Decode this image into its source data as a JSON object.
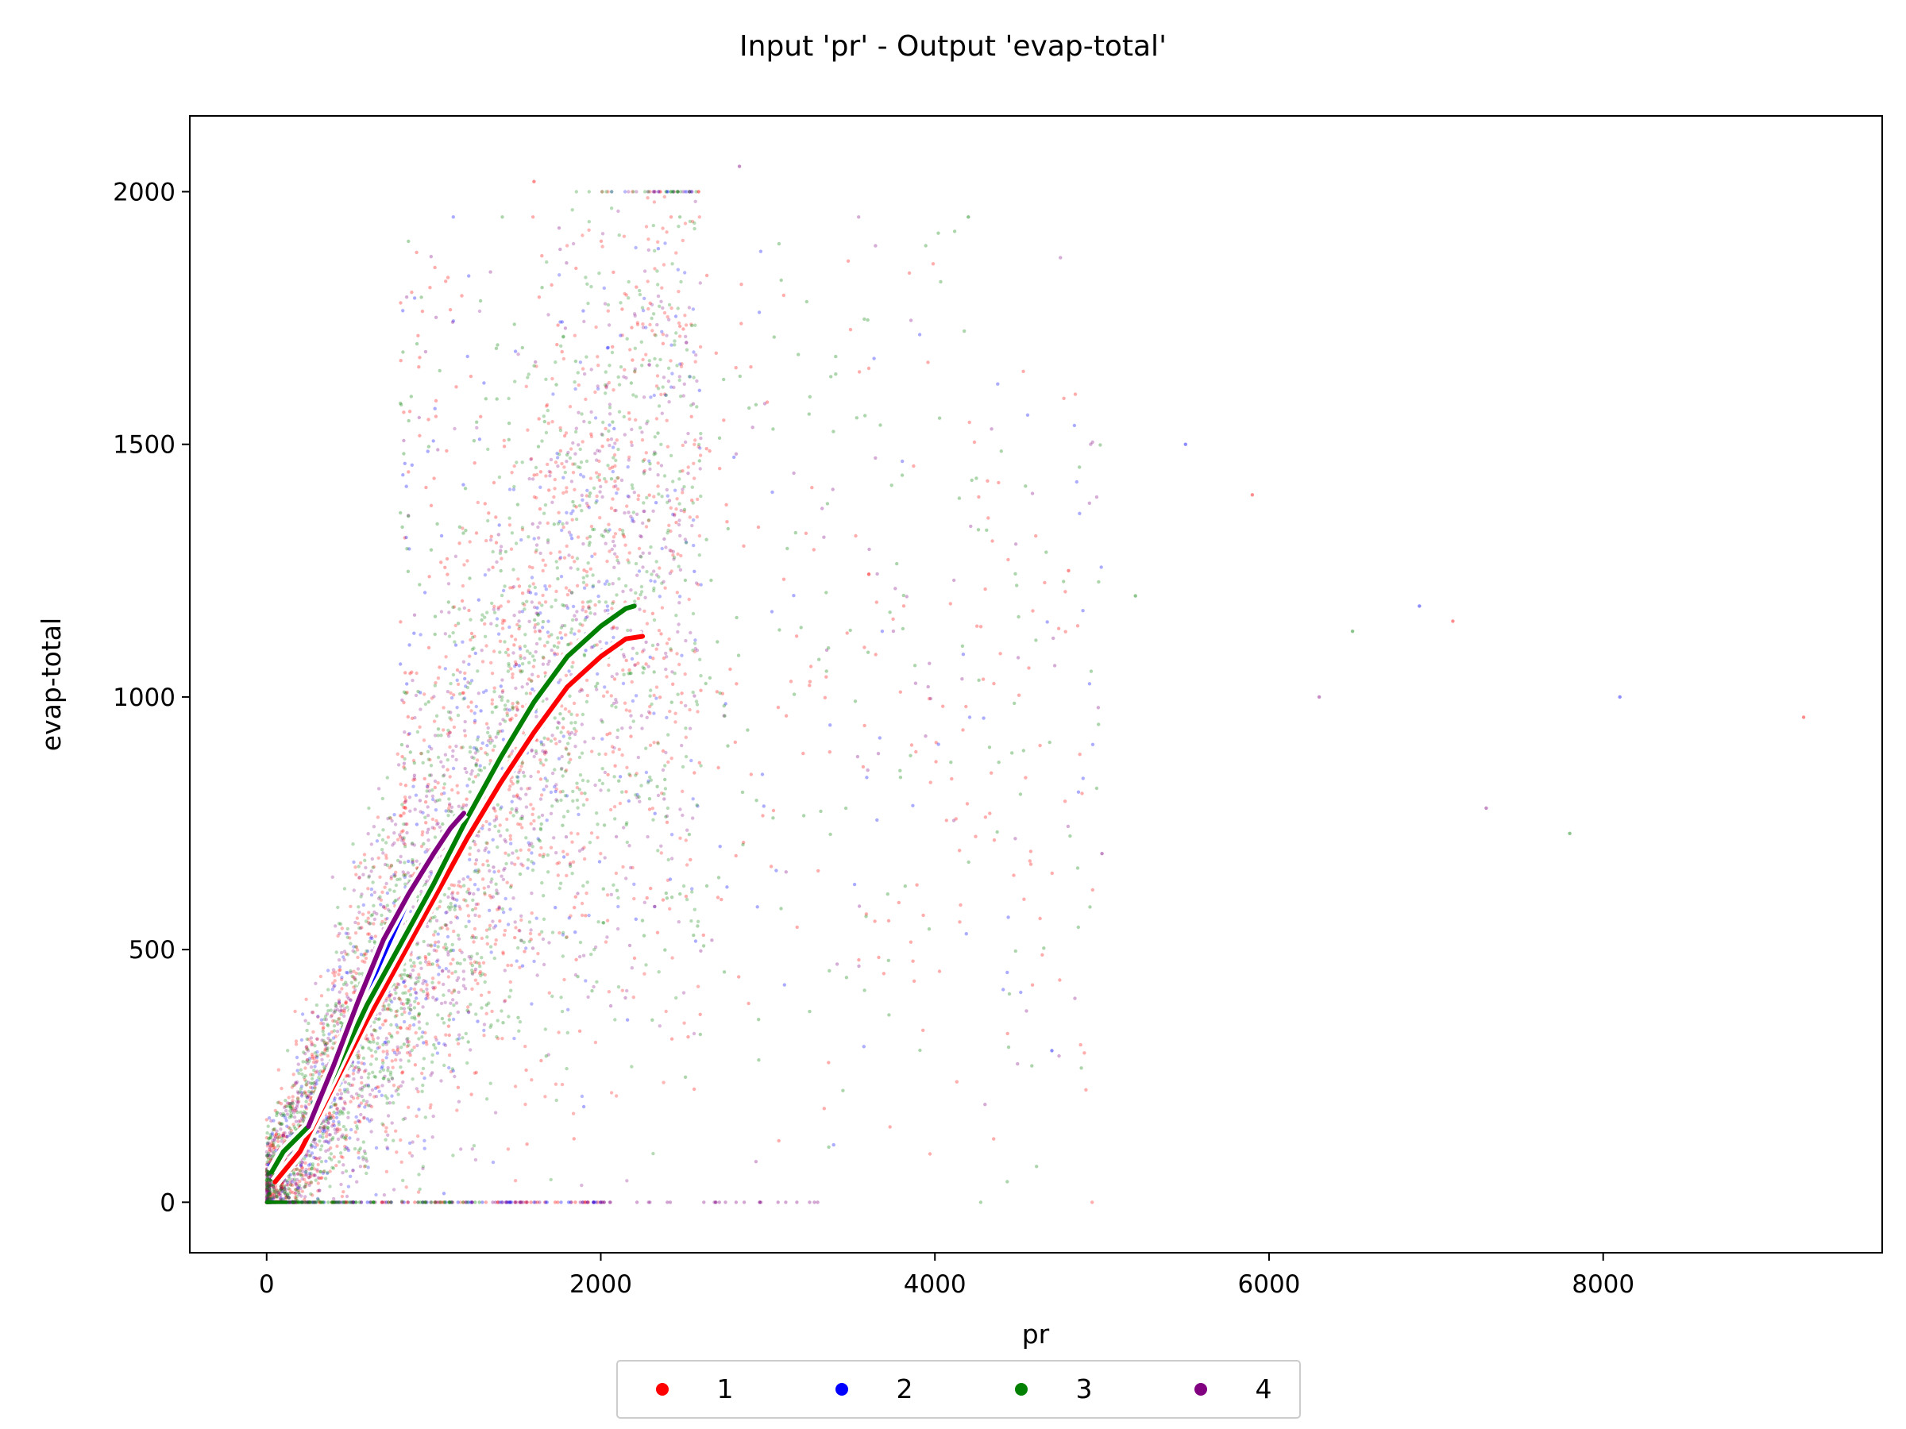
{
  "chart_data": {
    "type": "scatter",
    "title": "Input 'pr' - Output 'evap-total'",
    "xlabel": "pr",
    "ylabel": "evap-total",
    "xlim": [
      -460,
      9670
    ],
    "ylim": [
      -100,
      2150
    ],
    "xticks": [
      {
        "value": 0,
        "label": "0"
      },
      {
        "value": 2000,
        "label": "2000"
      },
      {
        "value": 4000,
        "label": "4000"
      },
      {
        "value": 6000,
        "label": "6000"
      },
      {
        "value": 8000,
        "label": "8000"
      }
    ],
    "yticks": [
      {
        "value": 0,
        "label": "0"
      },
      {
        "value": 500,
        "label": "500"
      },
      {
        "value": 1000,
        "label": "1000"
      },
      {
        "value": 1500,
        "label": "1500"
      },
      {
        "value": 2000,
        "label": "2000"
      }
    ],
    "grid": false,
    "legend_position": "bottom-center",
    "legend_entries": [
      {
        "label": "1",
        "color": "#ff0000"
      },
      {
        "label": "2",
        "color": "#0000ff"
      },
      {
        "label": "3",
        "color": "#008000"
      },
      {
        "label": "4",
        "color": "#800080"
      }
    ],
    "trend_lines": [
      {
        "series": "1",
        "color": "#ff0000",
        "points": [
          [
            50,
            40
          ],
          [
            200,
            100
          ],
          [
            400,
            230
          ],
          [
            600,
            360
          ],
          [
            800,
            480
          ],
          [
            1000,
            600
          ],
          [
            1200,
            720
          ],
          [
            1400,
            830
          ],
          [
            1600,
            930
          ],
          [
            1800,
            1020
          ],
          [
            2000,
            1080
          ],
          [
            2150,
            1115
          ],
          [
            2250,
            1120
          ]
        ]
      },
      {
        "series": "2",
        "color": "#0000ff",
        "points": [
          [
            300,
            200
          ],
          [
            500,
            340
          ],
          [
            700,
            490
          ],
          [
            850,
            600
          ],
          [
            920,
            640
          ]
        ]
      },
      {
        "series": "3",
        "color": "#008000",
        "points": [
          [
            30,
            60
          ],
          [
            100,
            100
          ],
          [
            250,
            150
          ],
          [
            400,
            250
          ],
          [
            600,
            390
          ],
          [
            800,
            510
          ],
          [
            1000,
            630
          ],
          [
            1200,
            760
          ],
          [
            1400,
            880
          ],
          [
            1600,
            990
          ],
          [
            1800,
            1080
          ],
          [
            2000,
            1140
          ],
          [
            2150,
            1175
          ],
          [
            2200,
            1180
          ]
        ]
      },
      {
        "series": "4",
        "color": "#800080",
        "points": [
          [
            250,
            150
          ],
          [
            400,
            270
          ],
          [
            550,
            400
          ],
          [
            700,
            520
          ],
          [
            850,
            610
          ],
          [
            1000,
            690
          ],
          [
            1100,
            740
          ],
          [
            1180,
            770
          ]
        ]
      }
    ],
    "point_clouds": [
      {
        "series": "1",
        "color": "#ff0000",
        "main_count": 1500,
        "scatter_count": 380
      },
      {
        "series": "2",
        "color": "#0000ff",
        "main_count": 550,
        "scatter_count": 130
      },
      {
        "series": "3",
        "color": "#008000",
        "main_count": 1600,
        "scatter_count": 300
      },
      {
        "series": "4",
        "color": "#800080",
        "main_count": 1300,
        "scatter_count": 120
      }
    ],
    "sample_outliers": [
      [
        9200,
        960
      ],
      [
        8100,
        1000
      ],
      [
        7800,
        730
      ],
      [
        7300,
        780
      ],
      [
        7100,
        1150
      ],
      [
        6900,
        1180
      ],
      [
        6500,
        1130
      ],
      [
        6300,
        1000
      ],
      [
        5900,
        1400
      ],
      [
        5500,
        1500
      ],
      [
        5200,
        1200
      ],
      [
        5000,
        690
      ],
      [
        4800,
        1250
      ],
      [
        4700,
        300
      ],
      [
        4200,
        1950
      ],
      [
        2830,
        2050
      ],
      [
        1600,
        2020
      ],
      [
        2400,
        2000
      ]
    ]
  }
}
